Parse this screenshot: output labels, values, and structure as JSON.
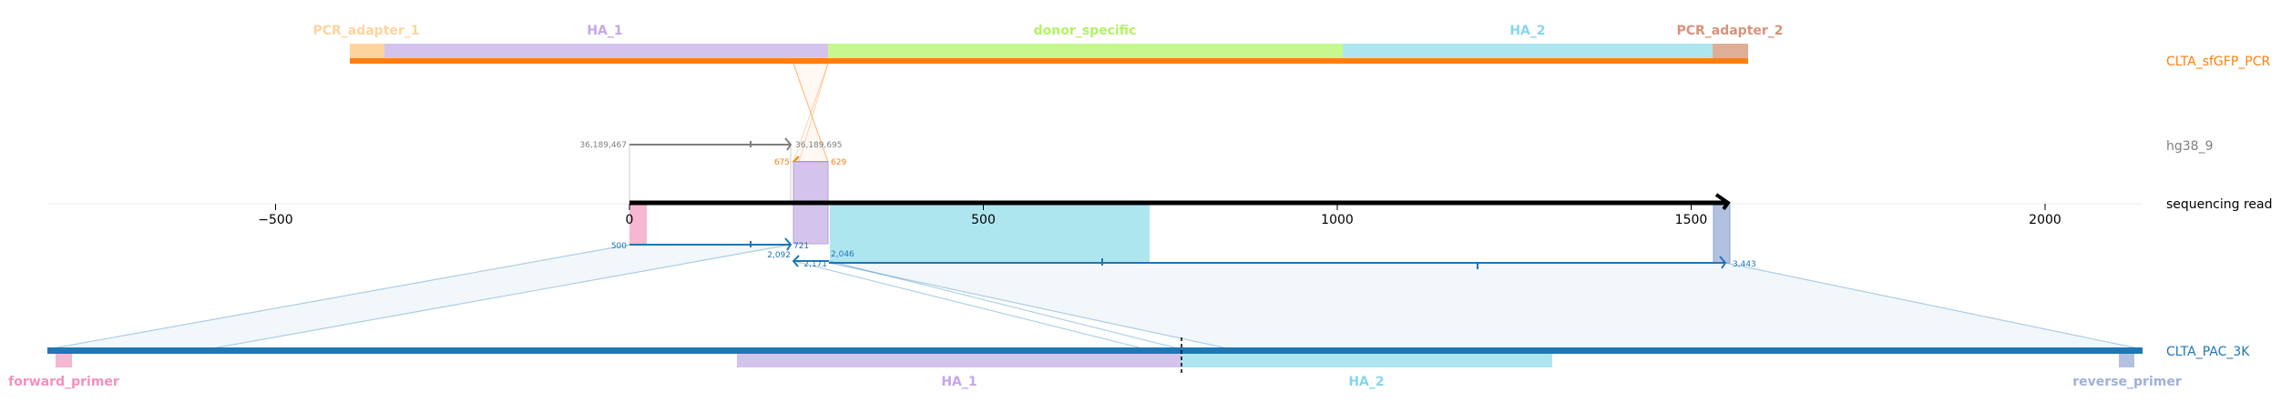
{
  "tracks": {
    "donor": {
      "label": "CLTA_sfGFP_PCR",
      "color": "#ff7f0e"
    },
    "genome": {
      "label": "hg38_9",
      "color": "#7f7f7f"
    },
    "read": {
      "label": "sequencing read",
      "color": "#000000"
    },
    "plasmid": {
      "label": "CLTA_PAC_3K",
      "color": "#1f77b4"
    }
  },
  "donor_features": [
    {
      "name": "PCR_adapter_1",
      "color": "#fdd49e",
      "text_color": "#fdd49e"
    },
    {
      "name": "HA_1",
      "color": "#d4c4ec",
      "text_color": "#c5a7ea"
    },
    {
      "name": "donor_specific",
      "color": "#c7f78f",
      "text_color": "#b3f266"
    },
    {
      "name": "HA_2",
      "color": "#aee6ef",
      "text_color": "#86d6ea"
    },
    {
      "name": "PCR_adapter_2",
      "color": "#dfae96",
      "text_color": "#d9927c"
    }
  ],
  "plasmid_features": [
    {
      "name": "forward_primer",
      "color": "#f7b6d2",
      "text_color": "#f48fbf"
    },
    {
      "name": "HA_1",
      "color": "#d4c4ec",
      "text_color": "#c5a7ea"
    },
    {
      "name": "HA_2",
      "color": "#aee6ef",
      "text_color": "#86d6ea"
    },
    {
      "name": "reverse_primer",
      "color": "#b3c1e0",
      "text_color": "#9fb0da"
    }
  ],
  "axis": {
    "ticks": [
      -500,
      0,
      500,
      1000,
      1500,
      2000
    ],
    "tick_labels": [
      "−500",
      "0",
      "500",
      "1000",
      "1500",
      "2000"
    ]
  },
  "genome_alignment": {
    "start_label": "36,189,467",
    "end_label": "36,189,695"
  },
  "donor_alignment": {
    "start_label": "675",
    "end_label": "629"
  },
  "plasmid_alignment_1": {
    "start_label": "500",
    "end_label": "721"
  },
  "plasmid_alignment_2": {
    "start_label": "2,092",
    "mid_label": "2,171",
    "mid_label_2": "2,046",
    "end_label": "3,443"
  }
}
